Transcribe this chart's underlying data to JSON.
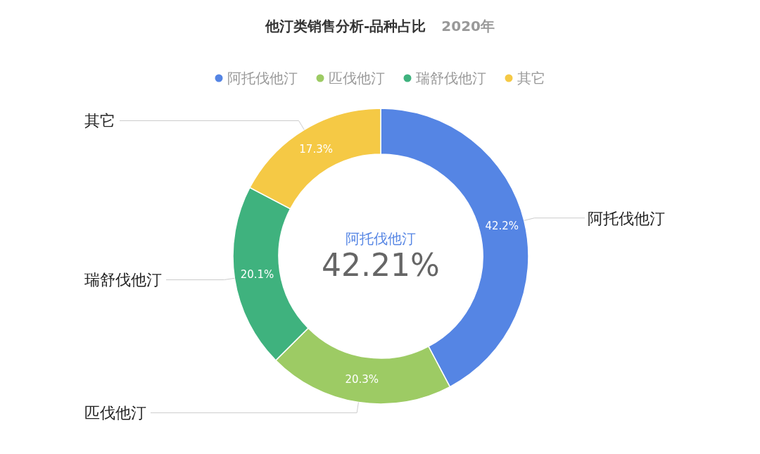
{
  "chart_data": {
    "type": "donut",
    "title": "他汀类销售分析-品种占比",
    "subtitle": "2020年",
    "categories": [
      "阿托伐他汀",
      "匹伐他汀",
      "瑞舒伐他汀",
      "其它"
    ],
    "values": [
      42.2,
      20.3,
      20.1,
      17.3
    ],
    "colors": [
      "#5585e4",
      "#9dcb64",
      "#3fb27e",
      "#f5c945"
    ],
    "value_labels": [
      "42.2%",
      "20.3%",
      "20.1%",
      "17.3%"
    ],
    "legend": "top",
    "annotations": [
      "阿托伐他汀",
      "42.21%"
    ]
  }
}
